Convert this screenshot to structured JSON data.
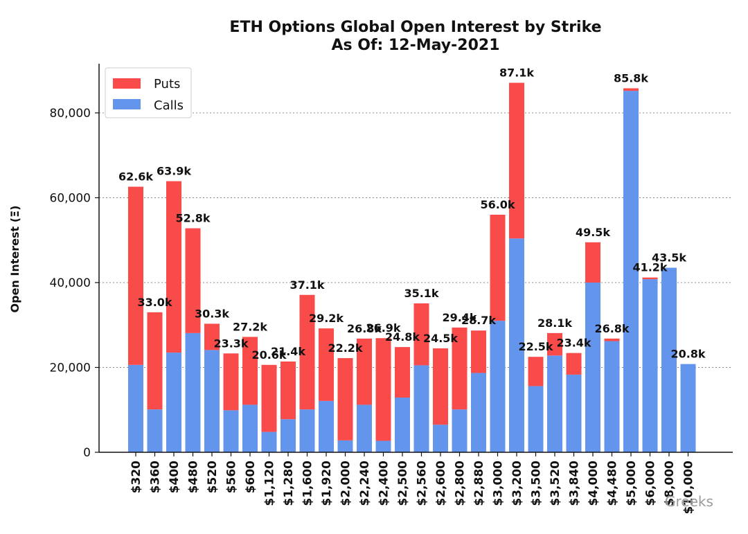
{
  "chart_data": {
    "type": "bar",
    "stacked": true,
    "title": "ETH Options Global Open Interest by Strike",
    "subtitle": "As Of: 12-May-2021",
    "ylabel": "Open Interest (Ξ)",
    "xlabel": "",
    "ylim": [
      0,
      92000
    ],
    "yticks": [
      0,
      20000,
      40000,
      60000,
      80000
    ],
    "ytick_labels": [
      "0",
      "20,000",
      "40,000",
      "60,000",
      "80,000"
    ],
    "grid": "horizontal dotted",
    "legend_position": "top-left",
    "categories": [
      "$320",
      "$360",
      "$400",
      "$480",
      "$520",
      "$560",
      "$600",
      "$1,120",
      "$1,280",
      "$1,600",
      "$1,920",
      "$2,000",
      "$2,240",
      "$2,400",
      "$2,500",
      "$2,560",
      "$2,600",
      "$2,800",
      "$2,880",
      "$3,000",
      "$3,200",
      "$3,500",
      "$3,520",
      "$3,840",
      "$4,000",
      "$4,480",
      "$5,000",
      "$6,000",
      "$8,000",
      "$10,000"
    ],
    "series": [
      {
        "name": "Calls",
        "color": "#6495ED",
        "values": [
          20600,
          10100,
          23500,
          28100,
          24100,
          9900,
          11200,
          4800,
          7800,
          10100,
          12100,
          2800,
          11200,
          2700,
          12900,
          20500,
          6500,
          10100,
          18700,
          31000,
          50400,
          15600,
          22800,
          18300,
          40000,
          26200,
          85200,
          40800,
          43500,
          20800
        ]
      },
      {
        "name": "Puts",
        "color": "#FA4B4B",
        "values": [
          42000,
          22900,
          40400,
          24700,
          6200,
          13400,
          16000,
          15800,
          13600,
          27000,
          17100,
          19400,
          15600,
          24200,
          11900,
          14600,
          18000,
          19300,
          10000,
          25000,
          36700,
          6900,
          5300,
          5100,
          9500,
          600,
          600,
          400,
          0,
          0
        ]
      }
    ],
    "totals_labels": [
      "62.6k",
      "33.0k",
      "63.9k",
      "52.8k",
      "30.3k",
      "23.3k",
      "27.2k",
      "20.6k",
      "21.4k",
      "37.1k",
      "29.2k",
      "22.2k",
      "26.8k",
      "26.9k",
      "24.8k",
      "35.1k",
      "24.5k",
      "29.4k",
      "28.7k",
      "56.0k",
      "87.1k",
      "22.5k",
      "28.1k",
      "23.4k",
      "49.5k",
      "26.8k",
      "85.8k",
      "41.2k",
      "43.5k",
      "20.8k"
    ]
  },
  "watermark": "Greeks"
}
